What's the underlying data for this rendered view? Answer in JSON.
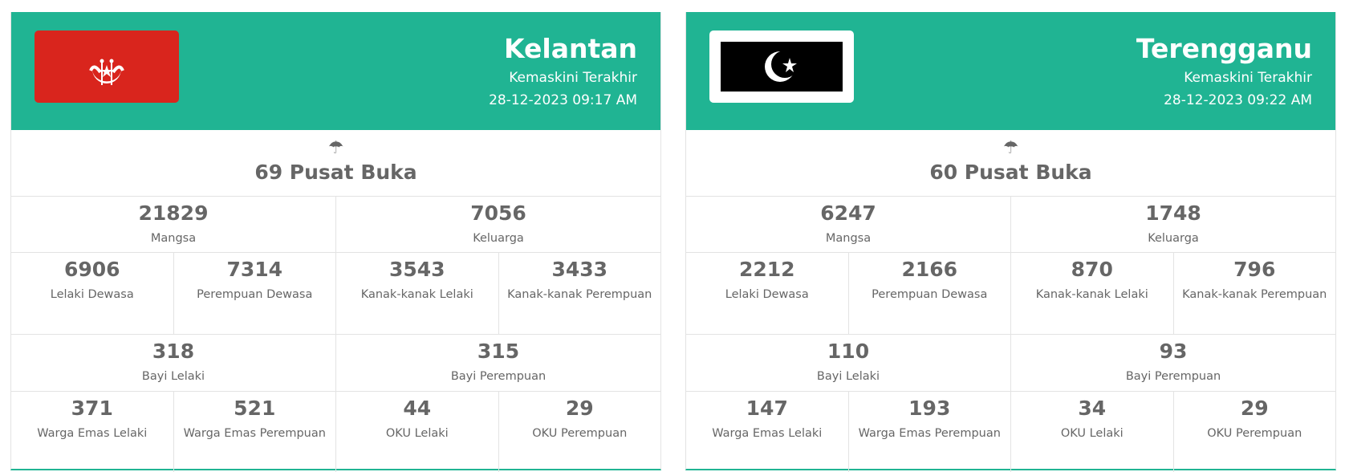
{
  "states": [
    {
      "name": "Kelantan",
      "updated_label": "Kemaskini Terakhir",
      "updated": "28-12-2023 09:17 AM",
      "flag": "kelantan-flag",
      "flag_color": "#d9251d",
      "pusat": "69 Pusat Buka",
      "stats": {
        "mangsa": {
          "v": "21829",
          "l": "Mangsa"
        },
        "keluarga": {
          "v": "7056",
          "l": "Keluarga"
        },
        "lelaki_dewasa": {
          "v": "6906",
          "l": "Lelaki Dewasa"
        },
        "perempuan_dewasa": {
          "v": "7314",
          "l": "Perempuan Dewasa"
        },
        "kanak_lelaki": {
          "v": "3543",
          "l": "Kanak-kanak Lelaki"
        },
        "kanak_perempuan": {
          "v": "3433",
          "l": "Kanak-kanak Perempuan"
        },
        "bayi_lelaki": {
          "v": "318",
          "l": "Bayi Lelaki"
        },
        "bayi_perempuan": {
          "v": "315",
          "l": "Bayi Perempuan"
        },
        "emas_lelaki": {
          "v": "371",
          "l": "Warga Emas Lelaki"
        },
        "emas_perempuan": {
          "v": "521",
          "l": "Warga Emas Perempuan"
        },
        "oku_lelaki": {
          "v": "44",
          "l": "OKU Lelaki"
        },
        "oku_perempuan": {
          "v": "29",
          "l": "OKU Perempuan"
        }
      }
    },
    {
      "name": "Terengganu",
      "updated_label": "Kemaskini Terakhir",
      "updated": "28-12-2023 09:22 AM",
      "flag": "terengganu-flag",
      "flag_color": "#000000",
      "pusat": "60 Pusat Buka",
      "stats": {
        "mangsa": {
          "v": "6247",
          "l": "Mangsa"
        },
        "keluarga": {
          "v": "1748",
          "l": "Keluarga"
        },
        "lelaki_dewasa": {
          "v": "2212",
          "l": "Lelaki Dewasa"
        },
        "perempuan_dewasa": {
          "v": "2166",
          "l": "Perempuan Dewasa"
        },
        "kanak_lelaki": {
          "v": "870",
          "l": "Kanak-kanak Lelaki"
        },
        "kanak_perempuan": {
          "v": "796",
          "l": "Kanak-kanak Perempuan"
        },
        "bayi_lelaki": {
          "v": "110",
          "l": "Bayi Lelaki"
        },
        "bayi_perempuan": {
          "v": "93",
          "l": "Bayi Perempuan"
        },
        "emas_lelaki": {
          "v": "147",
          "l": "Warga Emas Lelaki"
        },
        "emas_perempuan": {
          "v": "193",
          "l": "Warga Emas Perempuan"
        },
        "oku_lelaki": {
          "v": "34",
          "l": "OKU Lelaki"
        },
        "oku_perempuan": {
          "v": "29",
          "l": "OKU Perempuan"
        }
      }
    }
  ],
  "theme": {
    "header": "#20b493",
    "text": "#666666"
  },
  "icons": {
    "pusat": "umbrella-icon"
  }
}
